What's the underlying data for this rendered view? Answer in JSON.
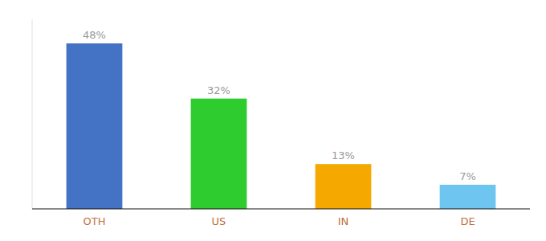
{
  "chart_data": {
    "type": "bar",
    "categories": [
      "OTH",
      "US",
      "IN",
      "DE"
    ],
    "values": [
      48,
      32,
      13,
      7
    ],
    "value_labels": [
      "48%",
      "32%",
      "13%",
      "7%"
    ],
    "data_labels": true,
    "colors": [
      "#4472c4",
      "#2ecc2e",
      "#f5a800",
      "#6ec6f0"
    ],
    "ylim": [
      0,
      55
    ],
    "tick_labels": "x",
    "grid": false
  }
}
